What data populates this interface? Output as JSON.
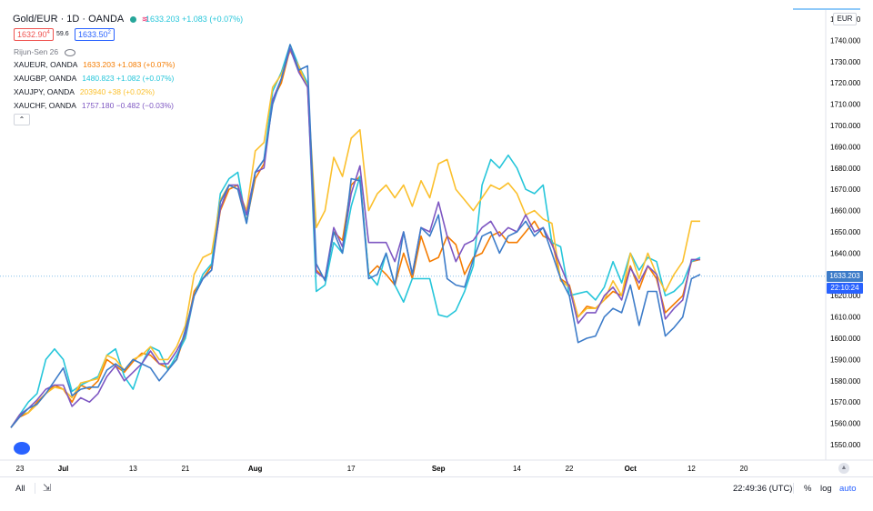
{
  "header": {
    "title": "Gold/EUR · 1D · OANDA",
    "price_line": "1633.203 +1.083 (+0.07%)",
    "bid": "1632.90",
    "bid_sup": "4",
    "spread": "59.6",
    "ask": "1633.50",
    "ask_sup": "2"
  },
  "indicator": {
    "label": "Rijun-Sen 26"
  },
  "symbols": [
    {
      "name": "XAUEUR, OANDA",
      "value": "1633.203 +1.083 (+0.07%)",
      "color": "#f57c00"
    },
    {
      "name": "XAUGBP, OANDA",
      "value": "1480.823 +1.082 (+0.07%)",
      "color": "#26c6da"
    },
    {
      "name": "XAUJPY, OANDA",
      "value": "203940 +38 (+0.02%)",
      "color": "#fbc02d"
    },
    {
      "name": "XAUCHF, OANDA",
      "value": "1757.180 −0.482 (−0.03%)",
      "color": "#7e57c2"
    }
  ],
  "price_scale": {
    "currency": "EUR",
    "last_price": "1633.203",
    "countdown": "22:10:24"
  },
  "bottom_bar": {
    "all": "All",
    "time": "22:49:36 (UTC)",
    "percent": "%",
    "log": "log",
    "auto": "auto"
  },
  "chart_data": {
    "type": "line",
    "ylim": [
      1543,
      1755
    ],
    "yticks": [
      1550,
      1560,
      1570,
      1580,
      1590,
      1600,
      1610,
      1620,
      1630,
      1640,
      1650,
      1660,
      1670,
      1680,
      1690,
      1700,
      1710,
      1720,
      1730,
      1740,
      1750
    ],
    "ytick_labels": [
      "1550.000",
      "1560.000",
      "1570.000",
      "1580.000",
      "1590.000",
      "1600.000",
      "1610.000",
      "1620.000",
      "1630.000",
      "1640.000",
      "1650.000",
      "1660.000",
      "1670.000",
      "1680.000",
      "1690.000",
      "1700.000",
      "1710.000",
      "1720.000",
      "1730.000",
      "1740.000",
      "1750.000"
    ],
    "xticks": [
      {
        "label": "23",
        "i": 0,
        "bold": false
      },
      {
        "label": "Jul",
        "i": 6,
        "bold": true
      },
      {
        "label": "13",
        "i": 14,
        "bold": false
      },
      {
        "label": "21",
        "i": 20,
        "bold": false
      },
      {
        "label": "Aug",
        "i": 28,
        "bold": true
      },
      {
        "label": "17",
        "i": 39,
        "bold": false
      },
      {
        "label": "Sep",
        "i": 49,
        "bold": true
      },
      {
        "label": "14",
        "i": 58,
        "bold": false
      },
      {
        "label": "22",
        "i": 64,
        "bold": false
      },
      {
        "label": "Oct",
        "i": 71,
        "bold": true
      },
      {
        "label": "12",
        "i": 78,
        "bold": false
      },
      {
        "label": "20",
        "i": 84,
        "bold": false
      }
    ],
    "n_points": 80,
    "series": [
      {
        "color": "#f57c00",
        "values": [
          1558,
          1563,
          1565,
          1570,
          1574,
          1578,
          1576,
          1570,
          1578,
          1576,
          1580,
          1590,
          1587,
          1584,
          1589,
          1593,
          1592,
          1588,
          1586,
          1590,
          1602,
          1622,
          1628,
          1634,
          1660,
          1670,
          1672,
          1655,
          1675,
          1682,
          1712,
          1720,
          1736,
          1726,
          1720,
          1632,
          1628,
          1650,
          1646,
          1672,
          1676,
          1630,
          1634,
          1630,
          1625,
          1640,
          1628,
          1648,
          1636,
          1638,
          1648,
          1644,
          1630,
          1638,
          1640,
          1648,
          1650,
          1645,
          1645,
          1650,
          1655,
          1648,
          1646,
          1628,
          1625,
          1610,
          1615,
          1614,
          1618,
          1622,
          1620,
          1634,
          1623,
          1634,
          1628,
          1612,
          1616,
          1620,
          1636,
          1637
        ]
      },
      {
        "color": "#26c6da",
        "values": [
          1558,
          1564,
          1570,
          1574,
          1590,
          1595,
          1590,
          1575,
          1578,
          1580,
          1582,
          1592,
          1595,
          1582,
          1576,
          1588,
          1596,
          1594,
          1585,
          1592,
          1600,
          1620,
          1630,
          1635,
          1668,
          1675,
          1678,
          1654,
          1678,
          1684,
          1716,
          1725,
          1738,
          1728,
          1720,
          1622,
          1625,
          1645,
          1640,
          1662,
          1676,
          1630,
          1625,
          1640,
          1625,
          1617,
          1628,
          1628,
          1628,
          1611,
          1610,
          1613,
          1622,
          1634,
          1672,
          1684,
          1680,
          1686,
          1680,
          1670,
          1668,
          1672,
          1645,
          1643,
          1620,
          1621,
          1622,
          1618,
          1624,
          1636,
          1626,
          1640,
          1632,
          1638,
          1636,
          1620,
          1622,
          1626,
          1636,
          1638
        ]
      },
      {
        "color": "#fbc02d",
        "values": [
          1558,
          1564,
          1565,
          1569,
          1574,
          1577,
          1576,
          1572,
          1579,
          1580,
          1581,
          1592,
          1590,
          1585,
          1590,
          1592,
          1596,
          1590,
          1590,
          1596,
          1606,
          1630,
          1638,
          1640,
          1665,
          1672,
          1670,
          1660,
          1688,
          1692,
          1718,
          1724,
          1735,
          1728,
          1718,
          1652,
          1660,
          1685,
          1676,
          1694,
          1698,
          1660,
          1668,
          1672,
          1666,
          1672,
          1662,
          1674,
          1666,
          1682,
          1684,
          1670,
          1665,
          1660,
          1666,
          1672,
          1670,
          1673,
          1668,
          1658,
          1660,
          1656,
          1654,
          1627,
          1624,
          1610,
          1614,
          1614,
          1618,
          1627,
          1620,
          1640,
          1628,
          1640,
          1630,
          1622,
          1630,
          1636,
          1655,
          1655
        ]
      },
      {
        "color": "#7e57c2",
        "values": [
          1558,
          1564,
          1567,
          1571,
          1576,
          1578,
          1578,
          1568,
          1572,
          1570,
          1574,
          1582,
          1587,
          1580,
          1584,
          1588,
          1594,
          1588,
          1588,
          1594,
          1602,
          1620,
          1628,
          1632,
          1661,
          1672,
          1672,
          1658,
          1678,
          1680,
          1712,
          1722,
          1736,
          1725,
          1718,
          1631,
          1628,
          1652,
          1643,
          1668,
          1681,
          1645,
          1645,
          1645,
          1636,
          1650,
          1630,
          1652,
          1650,
          1664,
          1648,
          1636,
          1644,
          1646,
          1652,
          1655,
          1648,
          1652,
          1650,
          1658,
          1650,
          1652,
          1644,
          1634,
          1624,
          1607,
          1612,
          1612,
          1620,
          1624,
          1618,
          1633,
          1626,
          1634,
          1630,
          1609,
          1614,
          1618,
          1637,
          1637
        ]
      },
      {
        "color": "#3d7cc9",
        "values": [
          1558,
          1563,
          1567,
          1569,
          1574,
          1580,
          1586,
          1573,
          1576,
          1577,
          1577,
          1585,
          1588,
          1585,
          1590,
          1588,
          1586,
          1580,
          1585,
          1590,
          1604,
          1620,
          1628,
          1632,
          1664,
          1672,
          1670,
          1654,
          1678,
          1684,
          1710,
          1722,
          1738,
          1726,
          1728,
          1635,
          1627,
          1650,
          1640,
          1675,
          1674,
          1628,
          1630,
          1640,
          1625,
          1650,
          1630,
          1652,
          1648,
          1658,
          1628,
          1625,
          1624,
          1637,
          1648,
          1650,
          1640,
          1648,
          1650,
          1655,
          1648,
          1652,
          1640,
          1628,
          1620,
          1598,
          1600,
          1601,
          1610,
          1614,
          1612,
          1625,
          1606,
          1622,
          1622,
          1601,
          1605,
          1610,
          1628,
          1630
        ]
      }
    ]
  }
}
